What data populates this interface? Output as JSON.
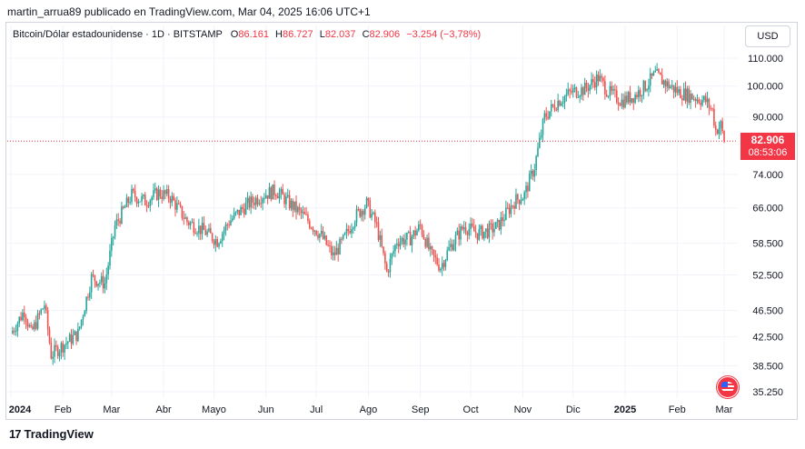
{
  "header": {
    "published": "martin_arrua89 publicado en TradingView.com, Mar 04, 2025 16:06 UTC+1"
  },
  "legend": {
    "symbol": "Bitcoin/Dólar estadounidense · 1D · BITSTAMP",
    "o_label": "O",
    "o_value": "86.161",
    "h_label": "H",
    "h_value": "86.727",
    "l_label": "L",
    "l_value": "82.037",
    "c_label": "C",
    "c_value": "82.906",
    "change": "−3.254 (−3,78%)"
  },
  "currency": "USD",
  "last_price": {
    "price": "82.906",
    "countdown": "08:53:06"
  },
  "branding": {
    "name": "TradingView",
    "mark": "17"
  },
  "colors": {
    "up": "#26a69a",
    "down": "#ef5350",
    "last": "#f23645",
    "grid": "#f0f3fa"
  },
  "chart_data": {
    "type": "candlestick",
    "scale": "log",
    "ylim": [
      34500,
      120000
    ],
    "last_price": 82906,
    "y_ticks": [
      {
        "value": 110000,
        "label": "110.000"
      },
      {
        "value": 100000,
        "label": "100.000"
      },
      {
        "value": 90000,
        "label": "90.000"
      },
      {
        "value": 74000,
        "label": "74.000"
      },
      {
        "value": 66000,
        "label": "66.000"
      },
      {
        "value": 58500,
        "label": "58.500"
      },
      {
        "value": 52500,
        "label": "52.500"
      },
      {
        "value": 46500,
        "label": "46.500"
      },
      {
        "value": 42500,
        "label": "42.500"
      },
      {
        "value": 38500,
        "label": "38.500"
      },
      {
        "value": 35250,
        "label": "35.250"
      }
    ],
    "x_ticks": [
      {
        "label": "2024",
        "bold": true,
        "day": 0
      },
      {
        "label": "Feb",
        "bold": false,
        "day": 31
      },
      {
        "label": "Mar",
        "bold": false,
        "day": 60
      },
      {
        "label": "Abr",
        "bold": false,
        "day": 91
      },
      {
        "label": "Mayo",
        "bold": false,
        "day": 121
      },
      {
        "label": "Jun",
        "bold": false,
        "day": 152
      },
      {
        "label": "Jul",
        "bold": false,
        "day": 182
      },
      {
        "label": "Ago",
        "bold": false,
        "day": 213
      },
      {
        "label": "Sep",
        "bold": false,
        "day": 244
      },
      {
        "label": "Oct",
        "bold": false,
        "day": 274
      },
      {
        "label": "Nov",
        "bold": false,
        "day": 305
      },
      {
        "label": "Dic",
        "bold": false,
        "day": 335
      },
      {
        "label": "2025",
        "bold": true,
        "day": 366
      },
      {
        "label": "Feb",
        "bold": false,
        "day": 397
      },
      {
        "label": "Mar",
        "bold": false,
        "day": 425
      }
    ],
    "price_path": [
      [
        0,
        43000
      ],
      [
        8,
        46500
      ],
      [
        12,
        43000
      ],
      [
        20,
        47500
      ],
      [
        24,
        40000
      ],
      [
        32,
        41500
      ],
      [
        40,
        43000
      ],
      [
        48,
        52000
      ],
      [
        56,
        51000
      ],
      [
        62,
        62000
      ],
      [
        72,
        69000
      ],
      [
        80,
        67500
      ],
      [
        88,
        69500
      ],
      [
        95,
        68500
      ],
      [
        105,
        63000
      ],
      [
        115,
        61000
      ],
      [
        123,
        59000
      ],
      [
        130,
        63000
      ],
      [
        140,
        66500
      ],
      [
        150,
        69000
      ],
      [
        158,
        70000
      ],
      [
        166,
        67000
      ],
      [
        175,
        64000
      ],
      [
        185,
        60000
      ],
      [
        192,
        56000
      ],
      [
        198,
        59000
      ],
      [
        205,
        64000
      ],
      [
        212,
        67000
      ],
      [
        218,
        62000
      ],
      [
        224,
        53000
      ],
      [
        230,
        59000
      ],
      [
        238,
        59500
      ],
      [
        244,
        62000
      ],
      [
        250,
        56500
      ],
      [
        256,
        54000
      ],
      [
        262,
        58000
      ],
      [
        270,
        62000
      ],
      [
        278,
        60500
      ],
      [
        284,
        61000
      ],
      [
        290,
        62000
      ],
      [
        300,
        67500
      ],
      [
        306,
        69000
      ],
      [
        312,
        76000
      ],
      [
        318,
        90000
      ],
      [
        326,
        95000
      ],
      [
        334,
        98000
      ],
      [
        342,
        99000
      ],
      [
        350,
        103000
      ],
      [
        356,
        98000
      ],
      [
        364,
        95000
      ],
      [
        372,
        97000
      ],
      [
        378,
        100000
      ],
      [
        384,
        104000
      ],
      [
        390,
        101000
      ],
      [
        398,
        98000
      ],
      [
        406,
        96500
      ],
      [
        414,
        95000
      ],
      [
        418,
        92000
      ],
      [
        420,
        86000
      ],
      [
        423,
        87500
      ],
      [
        425,
        82906
      ]
    ]
  }
}
